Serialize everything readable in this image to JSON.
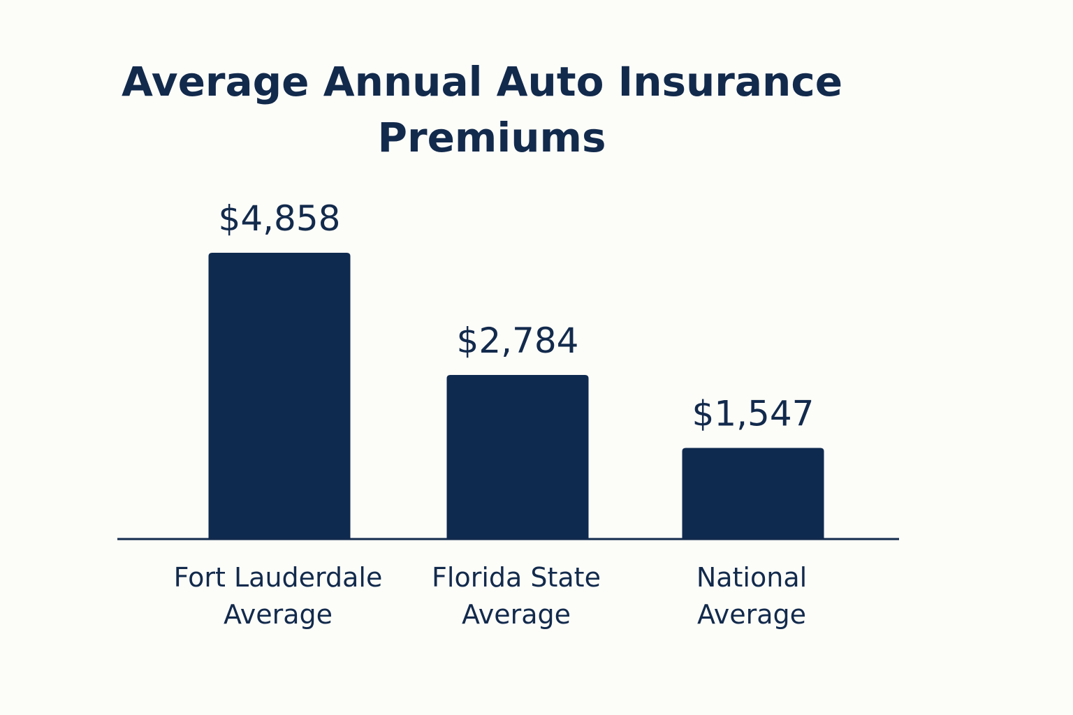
{
  "chart_data": {
    "type": "bar",
    "title": "Average Annual Auto Insurance Premiums",
    "title_lines": [
      "Average Annual Auto Insurance",
      "Premiums"
    ],
    "categories": [
      "Fort Lauderdale Average",
      "Florida State Average",
      "National Average"
    ],
    "category_lines": [
      [
        "Fort Lauderdale",
        "Average"
      ],
      [
        "Florida State",
        "Average"
      ],
      [
        "National",
        "Average"
      ]
    ],
    "values": [
      4858,
      2784,
      1547
    ],
    "value_labels": [
      "$4,858",
      "$2,784",
      "$1,547"
    ],
    "xlabel": "",
    "ylabel": "",
    "ylim": [
      0,
      4858
    ],
    "grid": false,
    "legend": "none"
  },
  "colors": {
    "bar": "#0e2a4f",
    "text": "#122a4c",
    "axis": "#122a4c",
    "background": "#fcfcf8"
  }
}
